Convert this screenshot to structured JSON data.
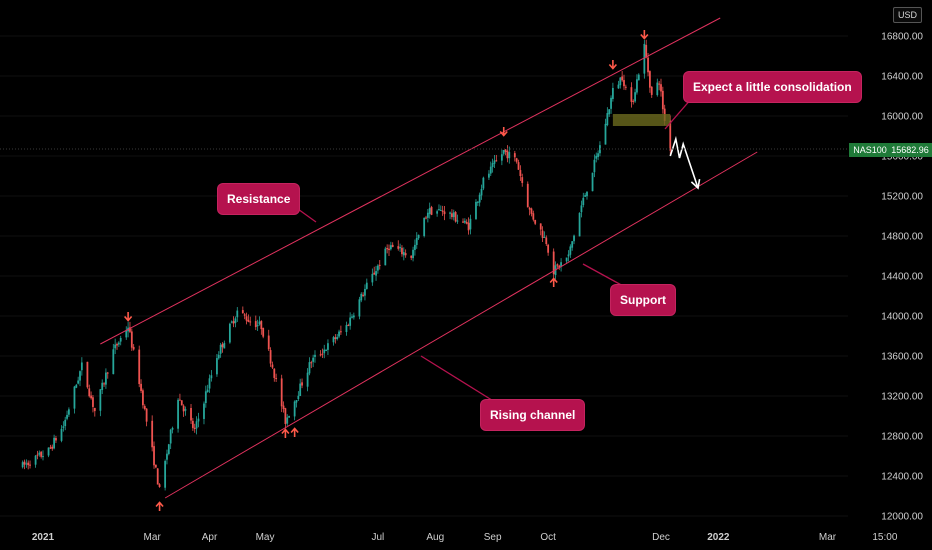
{
  "currency_label": "USD",
  "symbol_tag": {
    "symbol": "NAS100",
    "price": "15682.96",
    "color": "#26a69a"
  },
  "annotations": {
    "resistance": "Resistance",
    "support": "Support",
    "rising_channel": "Rising channel",
    "consolidation": "Expect a little consolidation"
  },
  "colors": {
    "background": "#000000",
    "up_candle": "#26a69a",
    "down_candle": "#ef5350",
    "channel_line": "#e0325e",
    "callout_bg": "#b5124e",
    "arrow_marker": "#ff5a4a",
    "consolidation_zone": "#6b6a1e"
  },
  "chart_data": {
    "type": "candlestick",
    "instrument": "NAS100",
    "last_price": 15682.96,
    "y_ticks": [
      12000,
      12400,
      12800,
      13200,
      13600,
      14000,
      14400,
      14800,
      15200,
      15600,
      16000,
      16400,
      16800
    ],
    "y_tick_labels": [
      "12000.00",
      "12400.00",
      "12800.00",
      "13200.00",
      "13600.00",
      "14000.00",
      "14400.00",
      "14800.00",
      "15200.00",
      "15600.00",
      "16000.00",
      "16400.00",
      "16800.00"
    ],
    "x_ticks": [
      {
        "label": "2021",
        "date": "2021-01-01",
        "bold": true
      },
      {
        "label": "Mar",
        "date": "2021-03-01"
      },
      {
        "label": "Apr",
        "date": "2021-04-01"
      },
      {
        "label": "May",
        "date": "2021-05-01"
      },
      {
        "label": "Jul",
        "date": "2021-07-01"
      },
      {
        "label": "Aug",
        "date": "2021-08-01"
      },
      {
        "label": "Sep",
        "date": "2021-09-01"
      },
      {
        "label": "Oct",
        "date": "2021-10-01"
      },
      {
        "label": "Dec",
        "date": "2021-12-01"
      },
      {
        "label": "2022",
        "date": "2022-01-01",
        "bold": true
      },
      {
        "label": "Mar",
        "date": "2022-03-01"
      },
      {
        "label": "15:00",
        "date": "2022-04-01"
      }
    ],
    "price_path": [
      [
        "2020-12-21",
        12500
      ],
      [
        "2021-01-04",
        12650
      ],
      [
        "2021-01-12",
        12900
      ],
      [
        "2021-01-22",
        13500
      ],
      [
        "2021-01-29",
        13050
      ],
      [
        "2021-02-08",
        13650
      ],
      [
        "2021-02-16",
        13900
      ],
      [
        "2021-02-22",
        13350
      ],
      [
        "2021-03-01",
        12650
      ],
      [
        "2021-03-05",
        12250
      ],
      [
        "2021-03-15",
        13200
      ],
      [
        "2021-03-24",
        12850
      ],
      [
        "2021-04-05",
        13600
      ],
      [
        "2021-04-16",
        14050
      ],
      [
        "2021-04-23",
        13950
      ],
      [
        "2021-04-29",
        13900
      ],
      [
        "2021-05-05",
        13500
      ],
      [
        "2021-05-12",
        12950
      ],
      [
        "2021-05-18",
        13200
      ],
      [
        "2021-05-26",
        13550
      ],
      [
        "2021-06-04",
        13700
      ],
      [
        "2021-06-14",
        13900
      ],
      [
        "2021-06-25",
        14300
      ],
      [
        "2021-07-07",
        14700
      ],
      [
        "2021-07-19",
        14600
      ],
      [
        "2021-07-28",
        15050
      ],
      [
        "2021-08-06",
        15050
      ],
      [
        "2021-08-19",
        14900
      ],
      [
        "2021-08-27",
        15350
      ],
      [
        "2021-09-07",
        15650
      ],
      [
        "2021-09-14",
        15550
      ],
      [
        "2021-09-21",
        15050
      ],
      [
        "2021-09-30",
        14750
      ],
      [
        "2021-10-04",
        14450
      ],
      [
        "2021-10-12",
        14600
      ],
      [
        "2021-10-19",
        15100
      ],
      [
        "2021-10-29",
        15700
      ],
      [
        "2021-11-05",
        16250
      ],
      [
        "2021-11-10",
        16400
      ],
      [
        "2021-11-15",
        16100
      ],
      [
        "2021-11-22",
        16700
      ],
      [
        "2021-11-26",
        16200
      ],
      [
        "2021-11-30",
        16350
      ],
      [
        "2021-12-03",
        15950
      ],
      [
        "2021-12-06",
        15683
      ]
    ],
    "channel": {
      "resistance": [
        [
          "2021-02-01",
          13720
        ],
        [
          "2022-01-02",
          16980
        ]
      ],
      "support": [
        [
          "2021-03-08",
          12180
        ],
        [
          "2022-01-22",
          15640
        ]
      ]
    },
    "consolidation_zone": {
      "from": "2021-11-05",
      "to": "2021-12-06",
      "low": 15900,
      "high": 16020
    },
    "projection": [
      [
        "2021-12-06",
        15600
      ],
      [
        "2021-12-09",
        15770
      ],
      [
        "2021-12-11",
        15580
      ],
      [
        "2021-12-13",
        15720
      ],
      [
        "2021-12-21",
        15280
      ]
    ],
    "marker_arrows": [
      {
        "date": "2021-02-16",
        "price": 14000,
        "direction": "down"
      },
      {
        "date": "2021-09-07",
        "price": 15850,
        "direction": "down"
      },
      {
        "date": "2021-11-05",
        "price": 16520,
        "direction": "down"
      },
      {
        "date": "2021-11-22",
        "price": 16820,
        "direction": "down"
      },
      {
        "date": "2021-03-05",
        "price": 12090,
        "direction": "up"
      },
      {
        "date": "2021-05-12",
        "price": 12820,
        "direction": "up"
      },
      {
        "date": "2021-05-17",
        "price": 12830,
        "direction": "up"
      },
      {
        "date": "2021-10-04",
        "price": 14330,
        "direction": "up"
      }
    ]
  }
}
